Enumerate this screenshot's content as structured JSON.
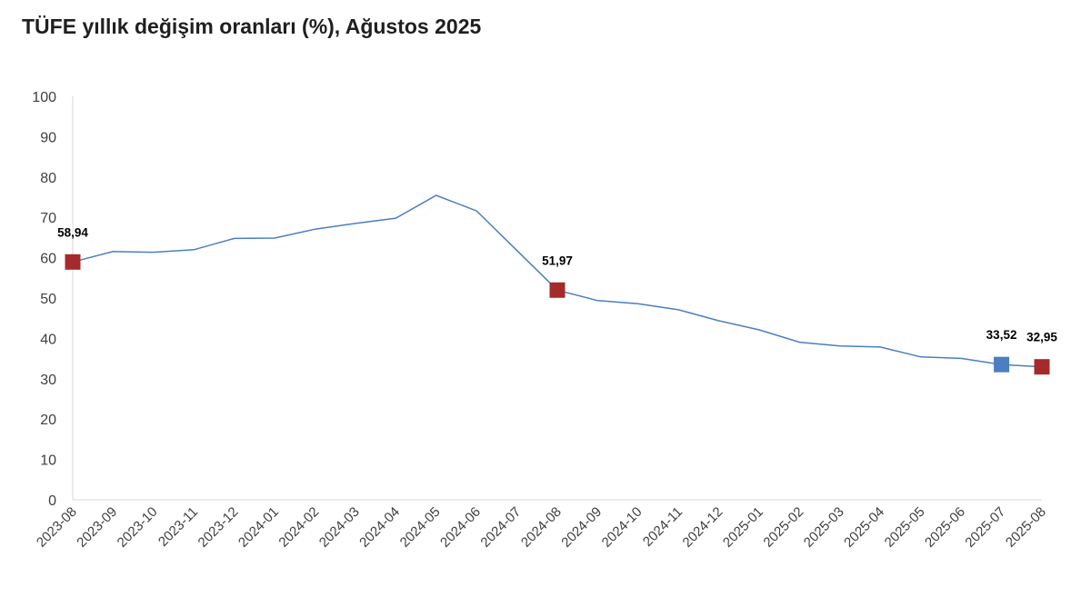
{
  "chart_data": {
    "type": "line",
    "title": "TÜFE yıllık değişim oranları (%), Ağustos 2025",
    "xlabel": "",
    "ylabel": "",
    "ylim": [
      0,
      100
    ],
    "yticks": [
      "0",
      "10",
      "20",
      "30",
      "40",
      "50",
      "60",
      "70",
      "80",
      "90",
      "100"
    ],
    "grid": false,
    "categories": [
      "2023-08",
      "2023-09",
      "2023-10",
      "2023-11",
      "2023-12",
      "2024-01",
      "2024-02",
      "2024-03",
      "2024-04",
      "2024-05",
      "2024-06",
      "2024-07",
      "2024-08",
      "2024-09",
      "2024-10",
      "2024-11",
      "2024-12",
      "2025-01",
      "2025-02",
      "2025-03",
      "2025-04",
      "2025-05",
      "2025-06",
      "2025-07",
      "2025-08"
    ],
    "series": [
      {
        "color": "#4a7fc1",
        "values": [
          58.94,
          61.53,
          61.36,
          61.98,
          64.77,
          64.86,
          67.07,
          68.5,
          69.8,
          75.45,
          71.6,
          61.78,
          51.97,
          49.38,
          48.58,
          47.09,
          44.38,
          42.12,
          39.05,
          38.1,
          37.86,
          35.41,
          35.05,
          33.52,
          32.95
        ]
      }
    ],
    "highlights": [
      {
        "index": 0,
        "label": "58,94",
        "color": "#a52a2a"
      },
      {
        "index": 12,
        "label": "51,97",
        "color": "#a52a2a"
      },
      {
        "index": 23,
        "label": "33,52",
        "color": "#4a7fc1"
      },
      {
        "index": 24,
        "label": "32,95",
        "color": "#a52a2a"
      }
    ]
  }
}
